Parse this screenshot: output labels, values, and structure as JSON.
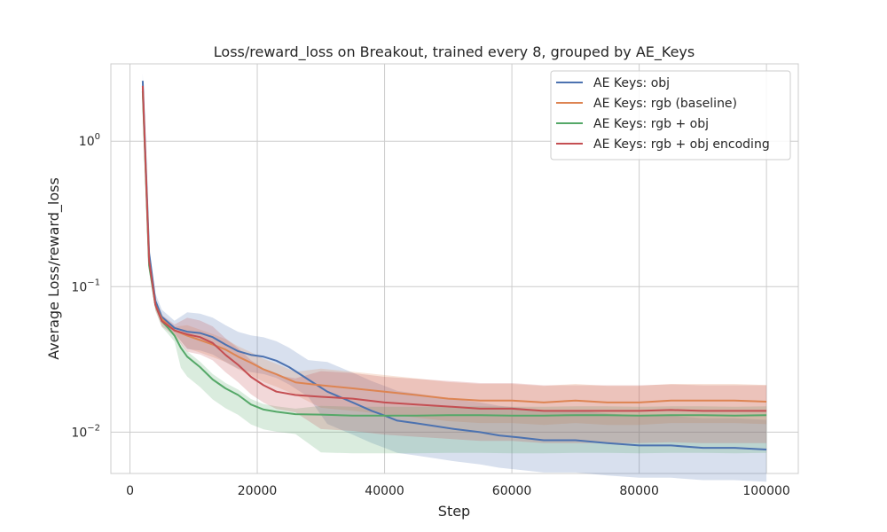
{
  "chart_data": {
    "type": "line",
    "title": "Loss/reward_loss on Breakout, trained every 8, grouped by AE_Keys",
    "xlabel": "Step",
    "ylabel": "Average Loss/reward_loss",
    "yscale": "log",
    "xlim": [
      -3000,
      105000
    ],
    "ylim": [
      0.0052,
      3.4
    ],
    "grid": true,
    "legend_position": "top-right",
    "x_ticks": [
      0,
      20000,
      40000,
      60000,
      80000,
      100000
    ],
    "x_tick_labels": [
      "0",
      "20000",
      "40000",
      "60000",
      "80000",
      "100000"
    ],
    "y_ticks": [
      0.01,
      0.1,
      1
    ],
    "y_tick_labels": [
      {
        "base": "10",
        "exp": "−2"
      },
      {
        "base": "10",
        "exp": "−1"
      },
      {
        "base": "10",
        "exp": "0"
      }
    ],
    "series": [
      {
        "name": "AE Keys: obj",
        "color": "#4c72b0",
        "x": [
          2000,
          3000,
          4000,
          5000,
          7000,
          9000,
          11000,
          13000,
          15000,
          17000,
          19000,
          21000,
          23000,
          25000,
          28000,
          31000,
          35000,
          38000,
          40000,
          42000,
          45000,
          48000,
          51000,
          55000,
          58000,
          61000,
          65000,
          70000,
          75000,
          80000,
          85000,
          90000,
          95000,
          100000
        ],
        "y": [
          2.6,
          0.17,
          0.08,
          0.062,
          0.052,
          0.049,
          0.048,
          0.045,
          0.04,
          0.036,
          0.034,
          0.033,
          0.031,
          0.028,
          0.023,
          0.019,
          0.016,
          0.014,
          0.013,
          0.012,
          0.0115,
          0.011,
          0.0105,
          0.01,
          0.0095,
          0.0092,
          0.0088,
          0.0088,
          0.0084,
          0.0081,
          0.0081,
          0.0078,
          0.0078,
          0.0076
        ],
        "band": [
          0.6,
          1.6
        ]
      },
      {
        "name": "AE Keys: rgb (baseline)",
        "color": "#dd8452",
        "x": [
          2000,
          3000,
          4000,
          5000,
          7000,
          9000,
          11000,
          13000,
          15000,
          17000,
          19000,
          21000,
          23000,
          26000,
          30000,
          35000,
          40000,
          45000,
          50000,
          55000,
          60000,
          65000,
          70000,
          75000,
          80000,
          85000,
          90000,
          95000,
          100000
        ],
        "y": [
          2.3,
          0.15,
          0.075,
          0.06,
          0.05,
          0.046,
          0.043,
          0.04,
          0.037,
          0.033,
          0.03,
          0.027,
          0.025,
          0.022,
          0.021,
          0.02,
          0.019,
          0.018,
          0.017,
          0.0165,
          0.0165,
          0.016,
          0.0165,
          0.016,
          0.016,
          0.0165,
          0.0165,
          0.0165,
          0.0162
        ],
        "band": [
          0.7,
          1.3
        ]
      },
      {
        "name": "AE Keys: rgb + obj",
        "color": "#55a868",
        "x": [
          2000,
          3000,
          4000,
          5000,
          6000,
          7000,
          8000,
          9000,
          11000,
          13000,
          15000,
          17000,
          19000,
          21000,
          23000,
          26000,
          30000,
          35000,
          40000,
          45000,
          50000,
          55000,
          60000,
          65000,
          70000,
          75000,
          80000,
          85000,
          90000,
          95000,
          100000
        ],
        "y": [
          2.2,
          0.14,
          0.075,
          0.058,
          0.052,
          0.046,
          0.038,
          0.033,
          0.028,
          0.023,
          0.02,
          0.018,
          0.0155,
          0.0143,
          0.0138,
          0.0133,
          0.0132,
          0.013,
          0.013,
          0.013,
          0.0131,
          0.0131,
          0.013,
          0.013,
          0.0131,
          0.0131,
          0.013,
          0.0131,
          0.0131,
          0.013,
          0.0131
        ],
        "band": [
          0.55,
          1.15
        ]
      },
      {
        "name": "AE Keys: rgb + obj encoding",
        "color": "#c44e52",
        "x": [
          2000,
          3000,
          4000,
          5000,
          7000,
          9000,
          11000,
          13000,
          15000,
          17000,
          19000,
          21000,
          23000,
          26000,
          30000,
          35000,
          40000,
          45000,
          50000,
          55000,
          60000,
          65000,
          70000,
          75000,
          80000,
          85000,
          90000,
          95000,
          100000
        ],
        "y": [
          2.4,
          0.15,
          0.075,
          0.058,
          0.05,
          0.047,
          0.045,
          0.041,
          0.034,
          0.029,
          0.024,
          0.021,
          0.019,
          0.018,
          0.0175,
          0.017,
          0.016,
          0.0155,
          0.015,
          0.0145,
          0.0145,
          0.014,
          0.014,
          0.014,
          0.014,
          0.0142,
          0.014,
          0.014,
          0.014
        ],
        "band": [
          0.6,
          1.5
        ]
      }
    ]
  }
}
